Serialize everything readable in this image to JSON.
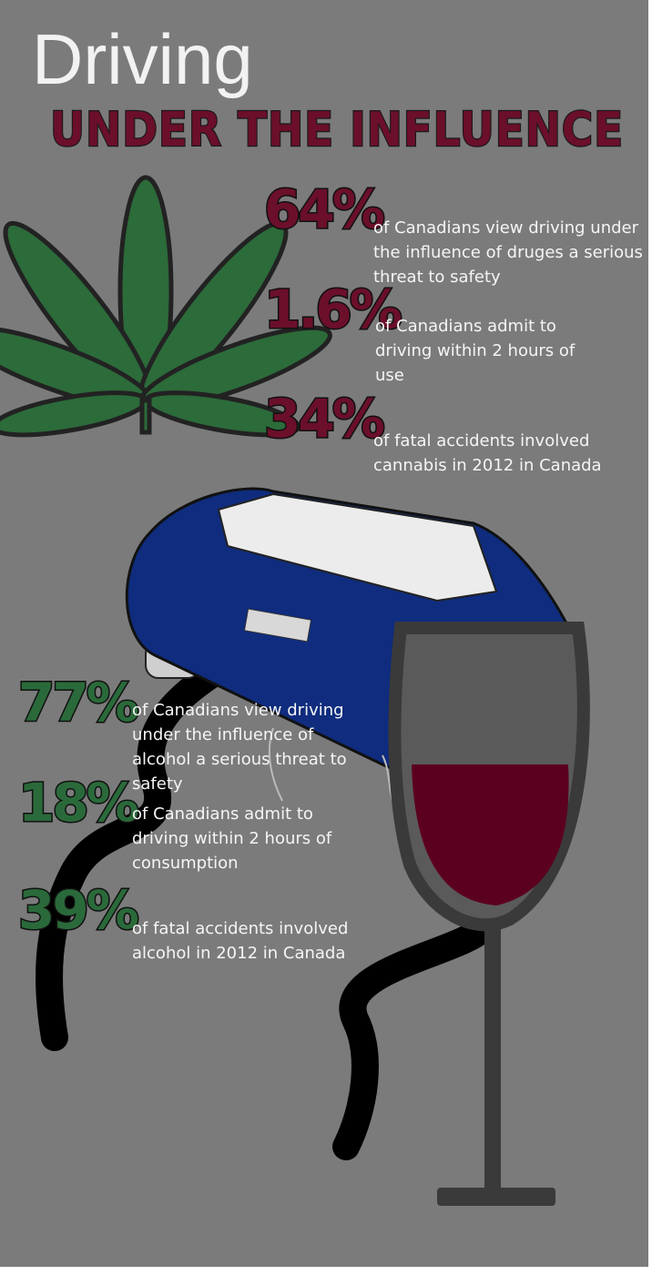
{
  "header": {
    "title": "Driving",
    "subtitle": "UNDER THE INFLUENCE"
  },
  "cannabis_stats": [
    {
      "figure": "64%",
      "lines": [
        "of Canadians view driving under",
        "the influence of druges a serious",
        "threat to safety"
      ]
    },
    {
      "figure": "1.6%",
      "lines": [
        "of Canadians admit to",
        "driving within 2 hours of",
        "use"
      ]
    },
    {
      "figure": "34%",
      "lines": [
        "of fatal accidents involved",
        "cannabis in 2012 in Canada"
      ]
    }
  ],
  "alcohol_stats": [
    {
      "figure": "77%",
      "lines": [
        "of Canadians view driving",
        "under the influence of",
        "alcohol a serious threat to",
        "safety"
      ]
    },
    {
      "figure": "18%",
      "lines": [
        "of Canadians admit to",
        "driving within 2 hours of",
        "consumption"
      ]
    },
    {
      "figure": "39%",
      "lines": [
        "of fatal accidents involved",
        "alcohol in 2012 in Canada"
      ]
    }
  ]
}
